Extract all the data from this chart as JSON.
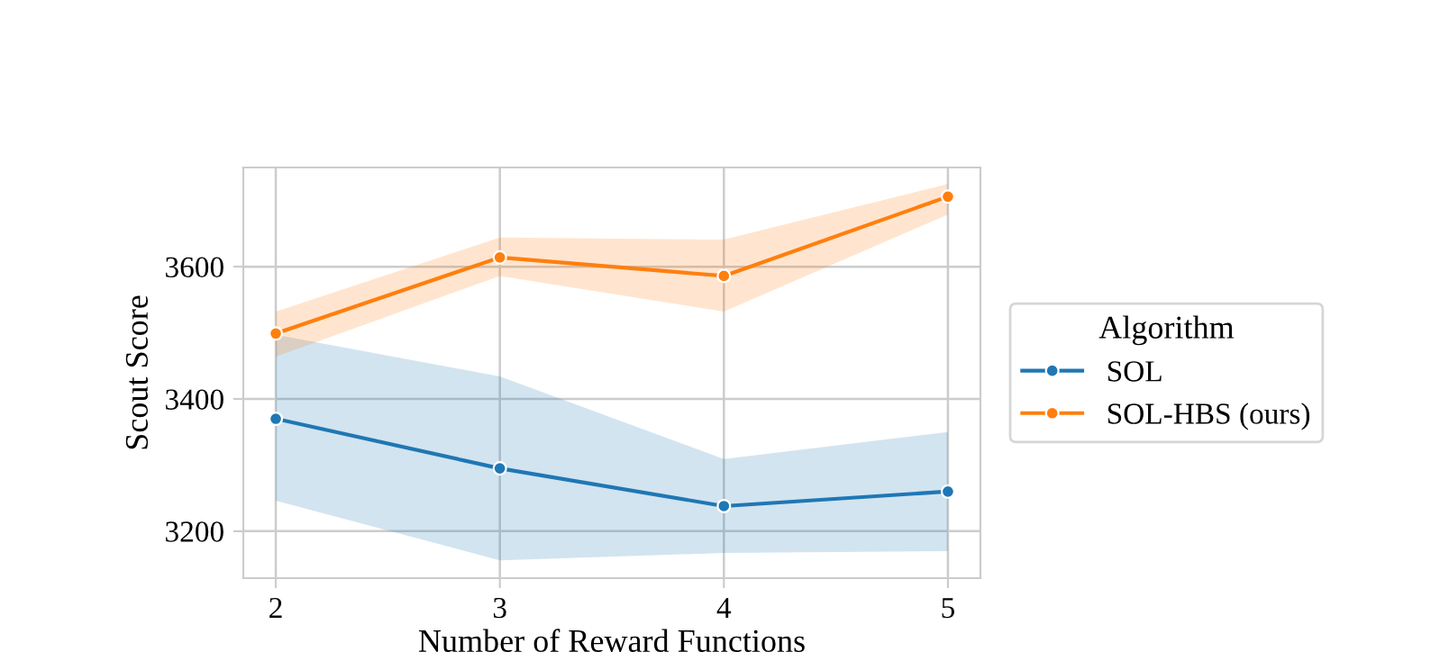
{
  "chart_data": {
    "type": "line",
    "xlabel": "Number of Reward Functions",
    "ylabel": "Scout Score",
    "legend_title": "Algorithm",
    "x": [
      2,
      3,
      4,
      5
    ],
    "xlim": [
      1.855,
      5.145
    ],
    "xticks": [
      2,
      3,
      4,
      5
    ],
    "ylim": [
      3129,
      3750
    ],
    "yticks": [
      3200,
      3400,
      3600
    ],
    "grid": true,
    "legend": "right",
    "marker": "circle",
    "line_style": "solid",
    "series": [
      {
        "name": "SOL",
        "color": "#1f77b4",
        "values": [
          3370,
          3295,
          3238,
          3260
        ],
        "lower": [
          3246,
          3156,
          3167,
          3170
        ],
        "upper": [
          3497,
          3434,
          3309,
          3350
        ]
      },
      {
        "name": "SOL-HBS (ours)",
        "color": "#ff7f0e",
        "values": [
          3499,
          3614,
          3586,
          3706
        ],
        "lower": [
          3464,
          3586,
          3532,
          3679
        ],
        "upper": [
          3532,
          3644,
          3641,
          3725
        ]
      }
    ]
  }
}
